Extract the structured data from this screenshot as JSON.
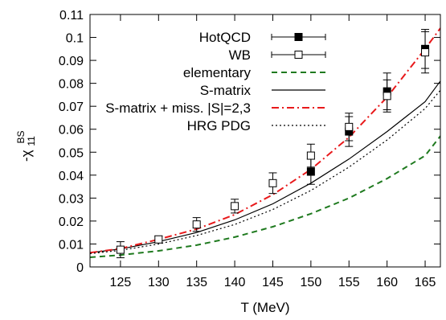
{
  "chart_data": {
    "type": "line",
    "xlabel": "T (MeV)",
    "ylabel": {
      "main": "-χ",
      "sup": "BS",
      "sub": "11"
    },
    "xlim": [
      121,
      167
    ],
    "ylim": [
      0,
      0.11
    ],
    "xticks": [
      "125",
      "130",
      "135",
      "140",
      "145",
      "150",
      "155",
      "160",
      "165"
    ],
    "yticks": [
      "0",
      "0.01",
      "0.02",
      "0.03",
      "0.04",
      "0.05",
      "0.06",
      "0.07",
      "0.08",
      "0.09",
      "0.1",
      "0.11"
    ],
    "grid": false,
    "legend_position": "top-left",
    "series": [
      {
        "name": "HotQCD",
        "kind": "points",
        "marker": "filled-square",
        "color": "#000000",
        "points": [
          {
            "x": 150,
            "y": 0.0415,
            "err": 0.0055
          },
          {
            "x": 155,
            "y": 0.059,
            "err": 0.0065
          },
          {
            "x": 160,
            "y": 0.0765,
            "err": 0.008
          },
          {
            "x": 165,
            "y": 0.095,
            "err": 0.0085
          }
        ]
      },
      {
        "name": "WB",
        "kind": "points",
        "marker": "open-square",
        "color": "#000000",
        "points": [
          {
            "x": 125,
            "y": 0.0075,
            "err": 0.0035
          },
          {
            "x": 130,
            "y": 0.012,
            "err": 0.0015
          },
          {
            "x": 135,
            "y": 0.0185,
            "err": 0.003
          },
          {
            "x": 140,
            "y": 0.0265,
            "err": 0.003
          },
          {
            "x": 145,
            "y": 0.0365,
            "err": 0.0045
          },
          {
            "x": 150,
            "y": 0.0485,
            "err": 0.005
          },
          {
            "x": 155,
            "y": 0.061,
            "err": 0.006
          },
          {
            "x": 160,
            "y": 0.0745,
            "err": 0.007
          },
          {
            "x": 165,
            "y": 0.0935,
            "err": 0.009
          }
        ]
      },
      {
        "name": "elementary",
        "kind": "line",
        "dash": "dashed",
        "color": "#1f7a1f",
        "x": [
          121,
          125,
          130,
          135,
          140,
          145,
          150,
          155,
          160,
          165,
          167
        ],
        "y": [
          0.0042,
          0.0052,
          0.007,
          0.0095,
          0.013,
          0.0175,
          0.0232,
          0.03,
          0.0385,
          0.0485,
          0.057
        ]
      },
      {
        "name": "S-matrix",
        "kind": "line",
        "dash": "solid",
        "color": "#000000",
        "x": [
          121,
          125,
          130,
          135,
          140,
          145,
          150,
          155,
          160,
          165,
          167
        ],
        "y": [
          0.0062,
          0.0078,
          0.011,
          0.015,
          0.0205,
          0.0275,
          0.0365,
          0.047,
          0.059,
          0.072,
          0.081
        ]
      },
      {
        "name": "S-matrix + miss. |S|=2,3",
        "kind": "line",
        "dash": "dashdot",
        "color": "#e8191b",
        "x": [
          121,
          125,
          130,
          135,
          140,
          145,
          150,
          155,
          160,
          165,
          167
        ],
        "y": [
          0.0062,
          0.008,
          0.012,
          0.0165,
          0.0228,
          0.0315,
          0.0425,
          0.0565,
          0.074,
          0.095,
          0.104
        ]
      },
      {
        "name": "HRG PDG",
        "kind": "line",
        "dash": "dotted",
        "color": "#000000",
        "x": [
          121,
          125,
          130,
          135,
          140,
          145,
          150,
          155,
          160,
          165,
          167
        ],
        "y": [
          0.0058,
          0.0072,
          0.01,
          0.0137,
          0.0185,
          0.025,
          0.0333,
          0.0435,
          0.0553,
          0.069,
          0.077
        ]
      }
    ]
  }
}
